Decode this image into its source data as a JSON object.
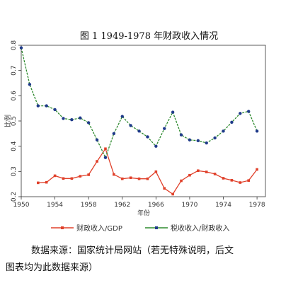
{
  "chart_data": {
    "type": "line",
    "title": "图 1   1949-1978 年财政收入情况",
    "xlabel": "年份",
    "ylabel": "比例",
    "xlim": [
      1950,
      1979
    ],
    "ylim": [
      0.2,
      0.8
    ],
    "xticks": [
      1950,
      1954,
      1958,
      1962,
      1966,
      1970,
      1974,
      1978
    ],
    "yticks": [
      0.2,
      0.3,
      0.4,
      0.5,
      0.6,
      0.7,
      0.8
    ],
    "grid": false,
    "legend_position": "bottom",
    "series": [
      {
        "name": "财政收入/GDP",
        "color": "#e0402a",
        "x": [
          1952,
          1953,
          1954,
          1955,
          1956,
          1957,
          1958,
          1959,
          1960,
          1961,
          1962,
          1963,
          1964,
          1965,
          1966,
          1967,
          1968,
          1969,
          1970,
          1971,
          1972,
          1973,
          1974,
          1975,
          1976,
          1977,
          1978
        ],
        "y": [
          0.255,
          0.257,
          0.283,
          0.272,
          0.272,
          0.281,
          0.287,
          0.34,
          0.39,
          0.288,
          0.271,
          0.275,
          0.271,
          0.271,
          0.299,
          0.233,
          0.21,
          0.263,
          0.285,
          0.303,
          0.298,
          0.29,
          0.273,
          0.265,
          0.256,
          0.264,
          0.308
        ]
      },
      {
        "name": "税收收入/财政收入",
        "color": "#2d8a2d",
        "x": [
          1950,
          1951,
          1952,
          1953,
          1954,
          1955,
          1956,
          1957,
          1958,
          1959,
          1960,
          1961,
          1962,
          1963,
          1964,
          1965,
          1966,
          1967,
          1968,
          1969,
          1970,
          1971,
          1972,
          1973,
          1974,
          1975,
          1976,
          1977,
          1978
        ],
        "y": [
          0.79,
          0.645,
          0.56,
          0.56,
          0.545,
          0.51,
          0.505,
          0.512,
          0.493,
          0.425,
          0.355,
          0.45,
          0.518,
          0.482,
          0.46,
          0.437,
          0.4,
          0.47,
          0.535,
          0.445,
          0.425,
          0.422,
          0.413,
          0.433,
          0.46,
          0.495,
          0.53,
          0.538,
          0.46
        ]
      }
    ]
  },
  "source_note": {
    "line1": "数据来源：国家统计局网站（若无特殊说明，后文",
    "line2": "图表均为此数据来源）"
  }
}
